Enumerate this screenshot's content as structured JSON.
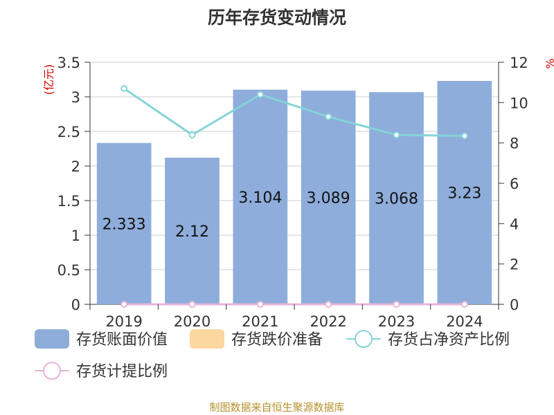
{
  "chart_data": {
    "type": "bar",
    "title": "历年存货变动情况",
    "categories": [
      "2019",
      "2020",
      "2021",
      "2022",
      "2023",
      "2024"
    ],
    "left_axis": {
      "unit": "(亿元)",
      "ylim": [
        0,
        3.5
      ],
      "ticks": [
        "0",
        "0.5",
        "1",
        "1.5",
        "2",
        "2.5",
        "3",
        "3.5"
      ]
    },
    "right_axis": {
      "unit": "%",
      "ylim": [
        0,
        12
      ],
      "ticks": [
        "0",
        "2",
        "4",
        "6",
        "8",
        "10",
        "12"
      ]
    },
    "series": [
      {
        "name": "存货账面价值",
        "type": "bar",
        "axis": "left",
        "color": "#8eaddb",
        "values": [
          2.333,
          2.12,
          3.104,
          3.089,
          3.068,
          3.23
        ],
        "labels": [
          "2.333",
          "2.12",
          "3.104",
          "3.089",
          "3.068",
          "3.23"
        ]
      },
      {
        "name": "存货跌价准备",
        "type": "bar",
        "axis": "left",
        "color": "#fdd7a0",
        "values": [
          0,
          0,
          0,
          0,
          0,
          0
        ]
      },
      {
        "name": "存货占净资产比例",
        "type": "line",
        "axis": "right",
        "color": "#85d3d8",
        "values": [
          10.7,
          8.4,
          10.4,
          9.3,
          8.4,
          8.35
        ]
      },
      {
        "name": "存货计提比例",
        "type": "line",
        "axis": "right",
        "color": "#e7b4d9",
        "values": [
          0,
          0,
          0,
          0,
          0,
          0
        ]
      }
    ],
    "grid": true,
    "legend_position": "bottom"
  },
  "source": "制图数据来自恒生聚源数据库"
}
